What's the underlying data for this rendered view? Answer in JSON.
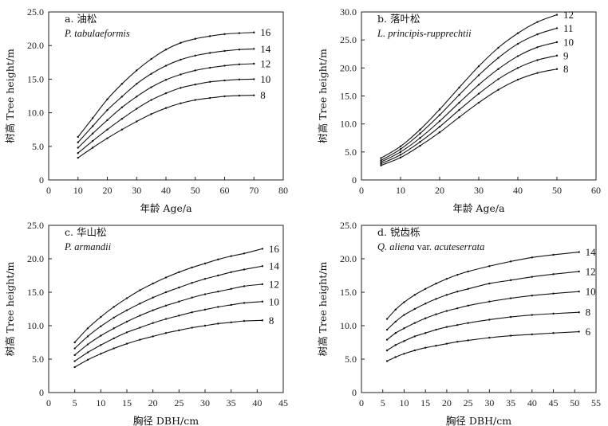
{
  "chart_data": [
    {
      "type": "line",
      "title": "a. 油松",
      "subtitle": "P. tabulaeformis",
      "xlabel": "年龄 Age/a",
      "ylabel": "树高 Tree height/m",
      "xlim": [
        0,
        80
      ],
      "ylim": [
        0,
        25
      ],
      "xticks": [
        0,
        10,
        20,
        30,
        40,
        50,
        60,
        70,
        80
      ],
      "yticks": [
        0,
        5,
        10,
        15,
        20,
        25
      ],
      "xtick_labels": [
        "0",
        "10",
        "20",
        "30",
        "40",
        "50",
        "60",
        "70",
        "80"
      ],
      "ytick_labels": [
        "0",
        "5.0",
        "10.0",
        "15.0",
        "20.0",
        "25.0"
      ],
      "x": [
        10,
        15,
        20,
        25,
        30,
        35,
        40,
        45,
        50,
        55,
        60,
        65,
        70
      ],
      "series": [
        {
          "name": "16",
          "values": [
            6.4,
            9.2,
            12.0,
            14.3,
            16.3,
            18.0,
            19.4,
            20.4,
            21.0,
            21.4,
            21.7,
            21.85,
            21.95
          ]
        },
        {
          "name": "14",
          "values": [
            5.6,
            8.0,
            10.4,
            12.4,
            14.3,
            15.8,
            17.0,
            17.9,
            18.5,
            18.9,
            19.2,
            19.4,
            19.5
          ]
        },
        {
          "name": "12",
          "values": [
            4.8,
            6.9,
            8.9,
            10.8,
            12.4,
            13.8,
            14.9,
            15.7,
            16.3,
            16.7,
            17.0,
            17.2,
            17.3
          ]
        },
        {
          "name": "10",
          "values": [
            4.0,
            5.8,
            7.5,
            9.1,
            10.6,
            11.9,
            12.9,
            13.7,
            14.2,
            14.6,
            14.8,
            14.95,
            15.0
          ]
        },
        {
          "name": "8",
          "values": [
            3.3,
            4.8,
            6.2,
            7.5,
            8.7,
            9.8,
            10.7,
            11.4,
            11.9,
            12.2,
            12.45,
            12.55,
            12.6
          ]
        }
      ]
    },
    {
      "type": "line",
      "title": "b. 落叶松",
      "subtitle": "L. principis-rupprechtii",
      "xlabel": "年龄 Age/a",
      "ylabel": "树高 Tree height/m",
      "xlim": [
        0,
        60
      ],
      "ylim": [
        0,
        30
      ],
      "xticks": [
        0,
        10,
        20,
        30,
        40,
        50,
        60
      ],
      "yticks": [
        0,
        5,
        10,
        15,
        20,
        25,
        30
      ],
      "xtick_labels": [
        "0",
        "10",
        "20",
        "30",
        "40",
        "50",
        "60"
      ],
      "ytick_labels": [
        "0",
        "5.0",
        "10.0",
        "15.0",
        "20.0",
        "25.0",
        "30.0"
      ],
      "x": [
        5,
        10,
        15,
        20,
        25,
        30,
        35,
        40,
        45,
        50
      ],
      "series": [
        {
          "name": "12",
          "values": [
            3.9,
            6.0,
            9.0,
            12.6,
            16.5,
            20.3,
            23.6,
            26.2,
            28.2,
            29.5
          ]
        },
        {
          "name": "11",
          "values": [
            3.5,
            5.5,
            8.3,
            11.6,
            15.2,
            18.7,
            21.8,
            24.3,
            26.0,
            27.1
          ]
        },
        {
          "name": "10",
          "values": [
            3.2,
            5.0,
            7.5,
            10.5,
            13.8,
            17.0,
            19.8,
            22.1,
            23.7,
            24.6
          ]
        },
        {
          "name": "9",
          "values": [
            2.9,
            4.5,
            6.8,
            9.5,
            12.5,
            15.4,
            18.0,
            20.0,
            21.4,
            22.2
          ]
        },
        {
          "name": "8",
          "values": [
            2.6,
            4.0,
            6.1,
            8.5,
            11.2,
            13.8,
            16.1,
            17.9,
            19.1,
            19.8
          ]
        }
      ]
    },
    {
      "type": "line",
      "title": "c. 华山松",
      "subtitle": "P. armandii",
      "xlabel": "胸径 DBH/cm",
      "ylabel": "树高 Tree height/m",
      "xlim": [
        0,
        45
      ],
      "ylim": [
        0,
        25
      ],
      "xticks": [
        0,
        5,
        10,
        15,
        20,
        25,
        30,
        35,
        40,
        45
      ],
      "yticks": [
        0,
        5,
        10,
        15,
        20,
        25
      ],
      "xtick_labels": [
        "0",
        "5",
        "10",
        "15",
        "20",
        "25",
        "30",
        "35",
        "40",
        "45"
      ],
      "ytick_labels": [
        "0",
        "5.0",
        "10.0",
        "15.0",
        "20.0",
        "25.0"
      ],
      "x": [
        5,
        7.5,
        10,
        12.5,
        15,
        17.5,
        20,
        22.5,
        25,
        27.5,
        30,
        32.5,
        35,
        37.5,
        41
      ],
      "series": [
        {
          "name": "16",
          "values": [
            7.5,
            9.6,
            11.3,
            12.8,
            14.1,
            15.3,
            16.3,
            17.2,
            18.0,
            18.7,
            19.3,
            19.9,
            20.4,
            20.8,
            21.5
          ]
        },
        {
          "name": "14",
          "values": [
            6.6,
            8.4,
            9.9,
            11.2,
            12.3,
            13.3,
            14.2,
            15.0,
            15.7,
            16.4,
            17.0,
            17.5,
            18.0,
            18.4,
            18.9
          ]
        },
        {
          "name": "12",
          "values": [
            5.6,
            7.2,
            8.5,
            9.6,
            10.6,
            11.5,
            12.3,
            13.0,
            13.6,
            14.2,
            14.7,
            15.1,
            15.5,
            15.9,
            16.2
          ]
        },
        {
          "name": "10",
          "values": [
            4.7,
            6.0,
            7.1,
            8.1,
            9.0,
            9.7,
            10.4,
            11.0,
            11.5,
            12.0,
            12.4,
            12.8,
            13.1,
            13.4,
            13.6
          ]
        },
        {
          "name": "8",
          "values": [
            3.8,
            4.9,
            5.8,
            6.6,
            7.3,
            7.9,
            8.4,
            8.9,
            9.3,
            9.7,
            10.0,
            10.3,
            10.5,
            10.7,
            10.8
          ]
        }
      ]
    },
    {
      "type": "line",
      "title": "d. 锐齿栎",
      "subtitle": "Q. aliena",
      "subtitle_plain": " var. ",
      "subtitle_tail": "acuteserrata",
      "xlabel": "胸径 DBH/cm",
      "ylabel": "树高 Tree height/m",
      "xlim": [
        0,
        55
      ],
      "ylim": [
        0,
        25
      ],
      "xticks": [
        0,
        5,
        10,
        15,
        20,
        25,
        30,
        35,
        40,
        45,
        50,
        55
      ],
      "yticks": [
        0,
        5,
        10,
        15,
        20,
        25
      ],
      "xtick_labels": [
        "0",
        "5",
        "10",
        "15",
        "20",
        "25",
        "30",
        "35",
        "40",
        "45",
        "50",
        "55"
      ],
      "ytick_labels": [
        "0",
        "5.0",
        "10.0",
        "15.0",
        "20.0",
        "25.0"
      ],
      "x": [
        6,
        8,
        10,
        12.5,
        15,
        17.5,
        20,
        22.5,
        25,
        30,
        35,
        40,
        45,
        51
      ],
      "series": [
        {
          "name": "14",
          "values": [
            11.0,
            12.4,
            13.5,
            14.6,
            15.5,
            16.3,
            17.0,
            17.6,
            18.1,
            18.9,
            19.6,
            20.2,
            20.6,
            21.0
          ]
        },
        {
          "name": "12",
          "values": [
            9.4,
            10.6,
            11.6,
            12.5,
            13.3,
            14.0,
            14.6,
            15.1,
            15.5,
            16.3,
            16.8,
            17.3,
            17.7,
            18.1
          ]
        },
        {
          "name": "10",
          "values": [
            7.9,
            8.9,
            9.6,
            10.4,
            11.1,
            11.7,
            12.2,
            12.6,
            13.0,
            13.6,
            14.1,
            14.5,
            14.8,
            15.1
          ]
        },
        {
          "name": "8",
          "values": [
            6.3,
            7.1,
            7.7,
            8.4,
            8.9,
            9.4,
            9.8,
            10.1,
            10.4,
            10.9,
            11.3,
            11.6,
            11.8,
            12.0
          ]
        },
        {
          "name": "6",
          "values": [
            4.7,
            5.3,
            5.8,
            6.3,
            6.7,
            7.0,
            7.3,
            7.6,
            7.8,
            8.2,
            8.5,
            8.7,
            8.9,
            9.1
          ]
        }
      ]
    }
  ]
}
